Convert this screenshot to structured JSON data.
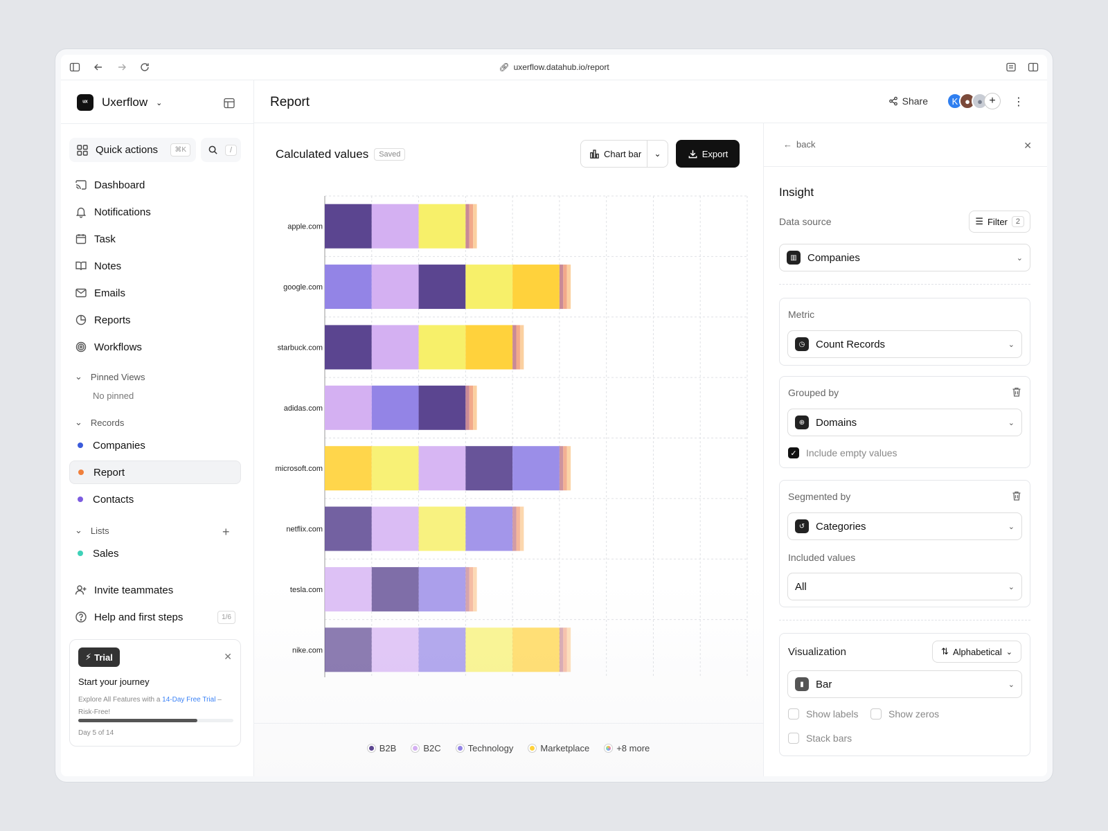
{
  "browser": {
    "url": "uxerflow.datahub.io/report"
  },
  "sidebar": {
    "brand": "Uxerflow",
    "logo_text": "ᵘˣ",
    "quick_actions": {
      "label": "Quick actions",
      "shortcut": "⌘K"
    },
    "search": {
      "shortcut": "/"
    },
    "nav": [
      {
        "label": "Dashboard",
        "icon": "cast-icon"
      },
      {
        "label": "Notifications",
        "icon": "bell-icon"
      },
      {
        "label": "Task",
        "icon": "calendar-icon"
      },
      {
        "label": "Notes",
        "icon": "book-icon"
      },
      {
        "label": "Emails",
        "icon": "mail-icon"
      },
      {
        "label": "Reports",
        "icon": "pie-chart-icon"
      },
      {
        "label": "Workflows",
        "icon": "target-icon"
      }
    ],
    "pinned": {
      "title": "Pinned Views",
      "empty": "No pinned"
    },
    "records": {
      "title": "Records",
      "items": [
        {
          "label": "Companies",
          "color": "#3b5bdb"
        },
        {
          "label": "Report",
          "color": "#f0803c"
        },
        {
          "label": "Contacts",
          "color": "#7c5ce0"
        }
      ]
    },
    "lists": {
      "title": "Lists",
      "items": [
        {
          "label": "Sales",
          "color": "#3ed1b8"
        }
      ]
    },
    "invite": "Invite teammates",
    "help": {
      "label": "Help and first steps",
      "badge": "1/6"
    },
    "trial": {
      "badge": "Trial",
      "title": "Start your journey",
      "desc_pre": "Explore All Features with a ",
      "desc_link": "14-Day Free Trial",
      "desc_post": " – Risk-Free!",
      "progress": 0.77,
      "day": "Day 5 of 14"
    }
  },
  "header": {
    "title": "Report",
    "share": "Share",
    "avatar_initial": "K"
  },
  "chart_panel": {
    "title": "Calculated values",
    "saved": "Saved",
    "chart_type_button": "Chart bar",
    "export": "Export",
    "legend": [
      {
        "name": "B2B",
        "color": "#5b4590"
      },
      {
        "name": "B2C",
        "color": "#d4b0f2"
      },
      {
        "name": "Technology",
        "color": "#9384e6"
      },
      {
        "name": "Marketplace",
        "color": "#ffd23c"
      },
      {
        "name": "+8 more",
        "color": "#e8a0c0"
      }
    ]
  },
  "chart_data": {
    "type": "bar",
    "orientation": "horizontal",
    "stacked": true,
    "categories": [
      "apple.com",
      "google.com",
      "starbuck.com",
      "adidas.com",
      "microsoft.com",
      "netflix.com",
      "tesla.com",
      "nike.com"
    ],
    "xlim": [
      0,
      9
    ],
    "xticks": [
      "0",
      "1",
      "2",
      "3",
      "4",
      "5",
      "6",
      "7",
      "8",
      "9"
    ],
    "grid": true,
    "segment_colors": {
      "B2B": "#5b4590",
      "B2C": "#d4b0f2",
      "Technology": "#9384e6",
      "Marketplace": "#ffd23c",
      "Yellow": "#f7f06a",
      "Tail1": "#c98a96",
      "Tail2": "#f2a98a",
      "Tail3": "#fbd0a0"
    },
    "rows": [
      {
        "category": "apple.com",
        "segments": [
          [
            "B2B",
            1
          ],
          [
            "B2C",
            1
          ],
          [
            "Yellow",
            1
          ],
          [
            "Tail1",
            0.08
          ],
          [
            "Tail2",
            0.08
          ],
          [
            "Tail3",
            0.08
          ]
        ]
      },
      {
        "category": "google.com",
        "segments": [
          [
            "Technology",
            1
          ],
          [
            "B2C",
            1
          ],
          [
            "B2B",
            1
          ],
          [
            "Yellow",
            1
          ],
          [
            "Marketplace",
            1
          ],
          [
            "Tail1",
            0.08
          ],
          [
            "Tail2",
            0.08
          ],
          [
            "Tail3",
            0.08
          ]
        ]
      },
      {
        "category": "starbuck.com",
        "segments": [
          [
            "B2B",
            1
          ],
          [
            "B2C",
            1
          ],
          [
            "Yellow",
            1
          ],
          [
            "Marketplace",
            1
          ],
          [
            "Tail1",
            0.08
          ],
          [
            "Tail2",
            0.08
          ],
          [
            "Tail3",
            0.08
          ]
        ]
      },
      {
        "category": "adidas.com",
        "segments": [
          [
            "B2C",
            1
          ],
          [
            "Technology",
            1
          ],
          [
            "B2B",
            1
          ],
          [
            "Tail1",
            0.08
          ],
          [
            "Tail2",
            0.08
          ],
          [
            "Tail3",
            0.08
          ]
        ]
      },
      {
        "category": "microsoft.com",
        "segments": [
          [
            "Marketplace",
            1
          ],
          [
            "Yellow",
            1
          ],
          [
            "B2C",
            1
          ],
          [
            "B2B",
            1
          ],
          [
            "Technology",
            1
          ],
          [
            "Tail1",
            0.08
          ],
          [
            "Tail2",
            0.08
          ],
          [
            "Tail3",
            0.08
          ]
        ]
      },
      {
        "category": "netflix.com",
        "segments": [
          [
            "B2B",
            1
          ],
          [
            "B2C",
            1
          ],
          [
            "Yellow",
            1
          ],
          [
            "Technology",
            1
          ],
          [
            "Tail1",
            0.08
          ],
          [
            "Tail2",
            0.08
          ],
          [
            "Tail3",
            0.08
          ]
        ]
      },
      {
        "category": "tesla.com",
        "segments": [
          [
            "B2C",
            1
          ],
          [
            "B2B",
            1
          ],
          [
            "Technology",
            1
          ],
          [
            "Tail1",
            0.08
          ],
          [
            "Tail2",
            0.08
          ],
          [
            "Tail3",
            0.08
          ]
        ]
      },
      {
        "category": "nike.com",
        "segments": [
          [
            "B2B",
            1
          ],
          [
            "B2C",
            1
          ],
          [
            "Technology",
            1
          ],
          [
            "Yellow",
            1
          ],
          [
            "Marketplace",
            1
          ],
          [
            "Tail1",
            0.08
          ],
          [
            "Tail2",
            0.08
          ],
          [
            "Tail3",
            0.08
          ]
        ]
      }
    ],
    "row_opacity": [
      1,
      1,
      1,
      1,
      0.92,
      0.85,
      0.78,
      0.7
    ]
  },
  "insight": {
    "back": "back",
    "title": "Insight",
    "data_source_label": "Data source",
    "filter_label": "Filter",
    "filter_count": "2",
    "data_source_value": "Companies",
    "metric_label": "Metric",
    "metric_value": "Count Records",
    "grouped_label": "Grouped by",
    "grouped_value": "Domains",
    "include_empty": "Include empty values",
    "segmented_label": "Segmented by",
    "segmented_value": "Categories",
    "included_values_label": "Included values",
    "included_values_value": "All",
    "visualization_label": "Visualization",
    "sort_value": "Alphabetical",
    "viz_value": "Bar",
    "show_labels": "Show labels",
    "show_zeros": "Show zeros",
    "stack_bars": "Stack bars"
  }
}
